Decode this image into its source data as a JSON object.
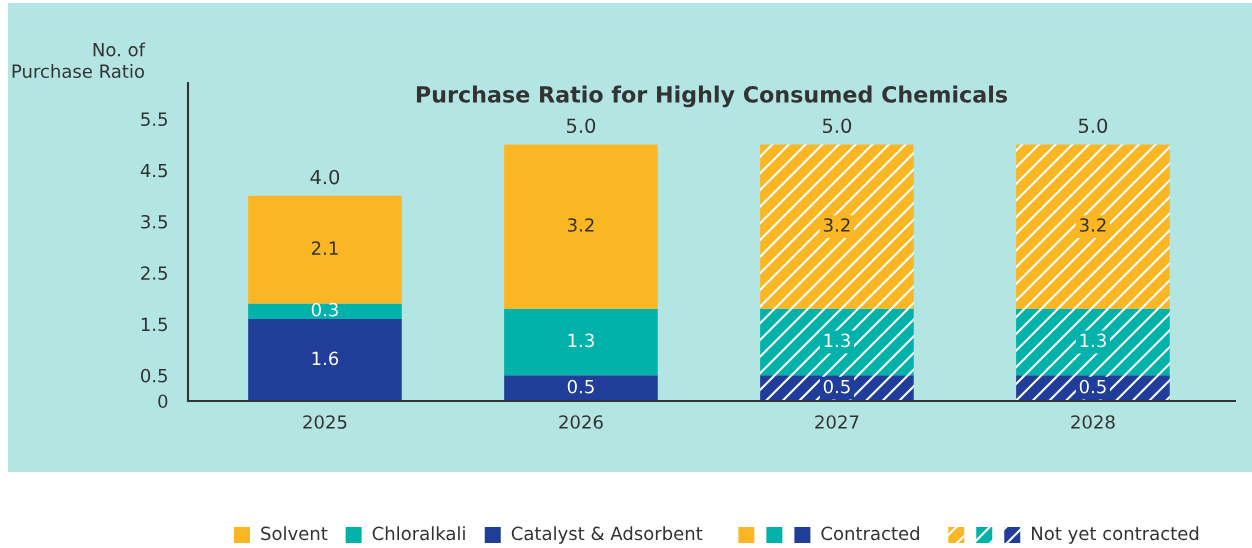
{
  "chart_data": {
    "type": "bar",
    "title": "Purchase Ratio for Highly Consumed Chemicals",
    "ylabel": "No. of\nPurchase Ratio",
    "categories": [
      "2025",
      "2026",
      "2027",
      "2028"
    ],
    "stacked": true,
    "data_labels": true,
    "series": [
      {
        "name": "Catalyst & Adsorbent",
        "color": "#1f3d99",
        "values": [
          1.6,
          0.5,
          null,
          null
        ]
      },
      {
        "color": "#1f3d99",
        "line_style": "dashed",
        "values": [
          null,
          null,
          0.5,
          0.5
        ]
      },
      {
        "name": "Chloralkali",
        "color": "#00b2a9",
        "values": [
          0.3,
          1.3,
          null,
          null
        ]
      },
      {
        "color": "#00b2a9",
        "line_style": "dashed",
        "values": [
          null,
          null,
          1.3,
          1.3
        ]
      },
      {
        "name": "Solvent",
        "color": "#fbb623",
        "values": [
          2.1,
          3.2,
          null,
          null
        ]
      },
      {
        "color": "#fbb623",
        "line_style": "dashed",
        "values": [
          null,
          null,
          3.2,
          3.2
        ]
      }
    ],
    "totals": [
      "4.0",
      "5.0",
      "5.0",
      "5.0"
    ],
    "annotations": [
      "Contracted",
      "Not yet contracted"
    ],
    "ylim": [
      0,
      6.2
    ],
    "yticks": [
      0,
      0.5,
      1.5,
      2.5,
      3.5,
      4.5,
      5.5
    ],
    "grid": false,
    "legend": "bottom"
  }
}
